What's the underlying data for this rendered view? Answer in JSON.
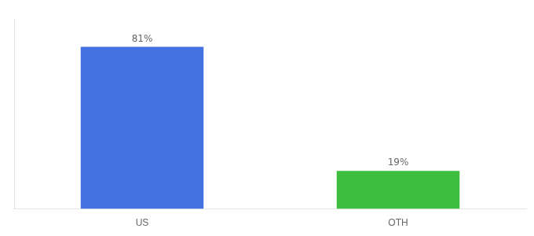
{
  "chart_data": {
    "type": "bar",
    "categories": [
      "US",
      "OTH"
    ],
    "values": [
      81,
      19
    ],
    "value_labels": [
      "81%",
      "19%"
    ],
    "colors": [
      "#4472e0",
      "#3dbe3d"
    ],
    "ylim": [
      0,
      95
    ],
    "yticks": [],
    "grid": false,
    "data_labels": true,
    "tick_labels": "x"
  }
}
